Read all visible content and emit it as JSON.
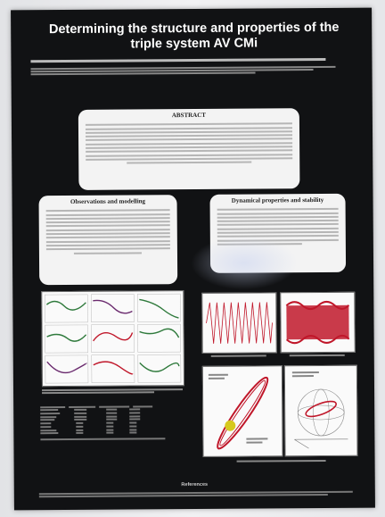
{
  "poster": {
    "title": "Determining the structure and properties of the triple system AV CMi",
    "sections": {
      "abstract": "ABSTRACT",
      "observations": "Observations and modelling",
      "dynamical": "Dynamical properties and stability",
      "references": "References"
    }
  },
  "colors": {
    "poster_background": "#111214",
    "panel": "#f3f3f3",
    "curve_red": "#c0172a",
    "curve_green": "#2f7a3c",
    "curve_purple": "#6a2a6e"
  }
}
